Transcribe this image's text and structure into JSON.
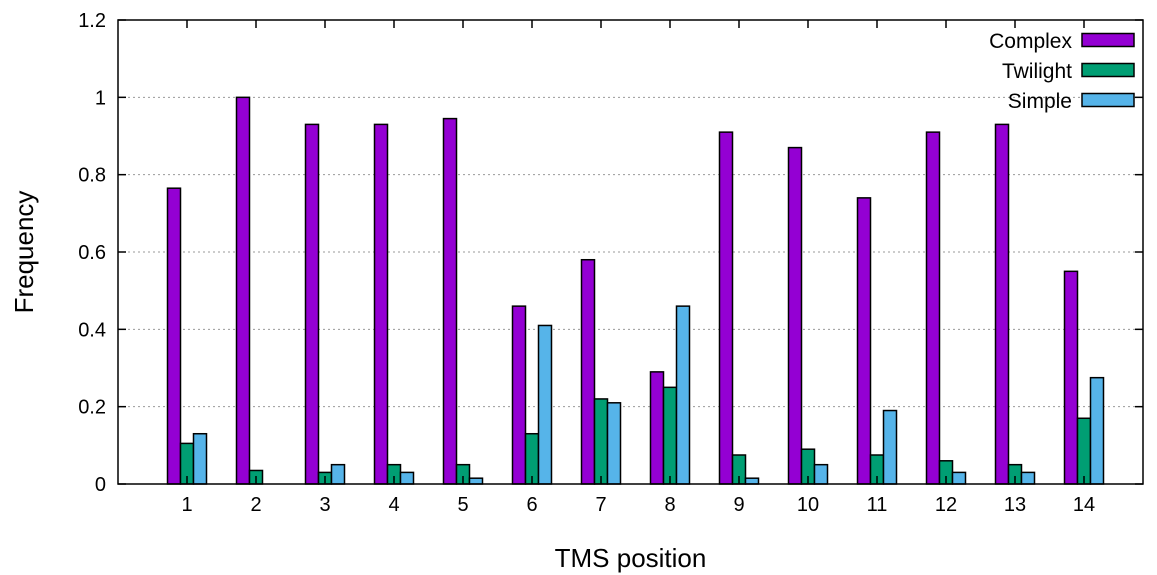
{
  "chart_data": {
    "type": "bar",
    "xlabel": "TMS position",
    "ylabel": "Frequency",
    "ylim": [
      0,
      1.2
    ],
    "yticks": [
      0,
      0.2,
      0.4,
      0.6,
      0.8,
      1,
      1.2
    ],
    "ytick_labels": [
      "0",
      "0.2",
      "0.4",
      "0.6",
      "0.8",
      "1",
      "1.2"
    ],
    "grid": "horizontal-dotted",
    "legend_position": "top-right",
    "categories": [
      "1",
      "2",
      "3",
      "4",
      "5",
      "6",
      "7",
      "8",
      "9",
      "10",
      "11",
      "12",
      "13",
      "14"
    ],
    "series": [
      {
        "name": "Complex",
        "color": "#9400d3",
        "values": [
          0.765,
          1.0,
          0.93,
          0.93,
          0.945,
          0.46,
          0.58,
          0.29,
          0.91,
          0.87,
          0.74,
          0.91,
          0.93,
          0.55
        ]
      },
      {
        "name": "Twilight",
        "color": "#009e73",
        "values": [
          0.105,
          0.035,
          0.03,
          0.05,
          0.05,
          0.13,
          0.22,
          0.25,
          0.075,
          0.09,
          0.075,
          0.06,
          0.05,
          0.17
        ]
      },
      {
        "name": "Simple",
        "color": "#56b4e9",
        "values": [
          0.13,
          0.0,
          0.05,
          0.03,
          0.015,
          0.41,
          0.21,
          0.46,
          0.015,
          0.05,
          0.19,
          0.03,
          0.03,
          0.275
        ]
      }
    ]
  }
}
